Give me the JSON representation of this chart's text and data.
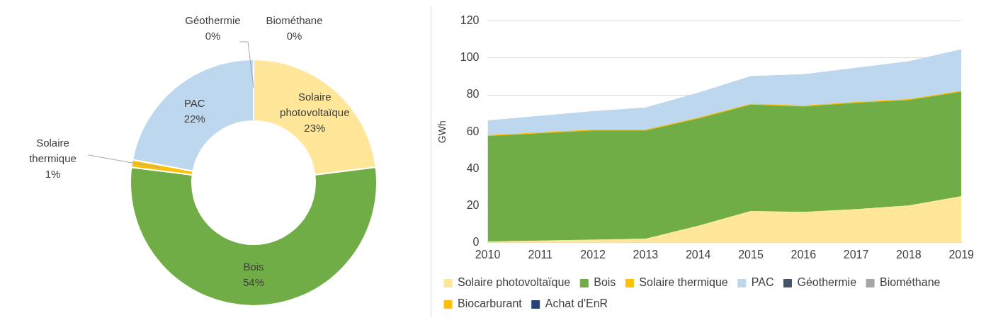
{
  "chart_data": [
    {
      "type": "donut",
      "categories": [
        "Solaire photovoltaïque",
        "Bois",
        "Solaire thermique",
        "PAC",
        "Géothermie",
        "Biométhane"
      ],
      "values": [
        23,
        54,
        1,
        22,
        0,
        0
      ],
      "value_labels": [
        "23%",
        "54%",
        "1%",
        "22%",
        "0%",
        "0%"
      ],
      "colors": [
        "#ffe699",
        "#70ad47",
        "#ffc000",
        "#bdd7ee",
        "#44546a",
        "#a5a5a5"
      ],
      "legend": false
    },
    {
      "type": "area",
      "stacked": true,
      "categories": [
        "2010",
        "2011",
        "2012",
        "2013",
        "2014",
        "2015",
        "2016",
        "2017",
        "2018",
        "2019"
      ],
      "ylabel": "GWh",
      "ylim": [
        0,
        120
      ],
      "yticks": [
        0,
        20,
        40,
        60,
        80,
        100,
        120
      ],
      "grid": "y",
      "legend": "bottom",
      "marker": "none",
      "series": [
        {
          "name": "Solaire photovoltaïque",
          "color": "#ffe699",
          "values": [
            0.5,
            1,
            1.5,
            2,
            9,
            17,
            16.5,
            18,
            20,
            25
          ]
        },
        {
          "name": "Bois",
          "color": "#70ad47",
          "values": [
            57,
            58,
            59,
            58.5,
            58,
            57.5,
            57,
            57.5,
            57,
            56.5
          ]
        },
        {
          "name": "Solaire thermique",
          "color": "#ffc000",
          "values": [
            0.5,
            0.5,
            0.5,
            0.5,
            0.5,
            0.5,
            0.5,
            0.5,
            0.5,
            0.5
          ]
        },
        {
          "name": "PAC",
          "color": "#bdd7ee",
          "values": [
            8,
            9,
            10,
            12,
            13.5,
            15,
            17,
            18.5,
            20.5,
            22.5
          ]
        },
        {
          "name": "Géothermie",
          "color": "#44546a",
          "values": [
            null,
            null,
            null,
            null,
            null,
            null,
            null,
            null,
            null,
            null
          ]
        },
        {
          "name": "Biométhane",
          "color": "#a5a5a5",
          "values": [
            null,
            null,
            null,
            null,
            null,
            null,
            null,
            null,
            null,
            null
          ]
        },
        {
          "name": "Biocarburant",
          "color": "#ffc000",
          "values": [
            null,
            null,
            null,
            null,
            null,
            null,
            null,
            null,
            null,
            null
          ]
        },
        {
          "name": "Achat d'EnR",
          "color": "#264478",
          "values": [
            null,
            null,
            null,
            null,
            null,
            null,
            null,
            null,
            null,
            null
          ]
        }
      ]
    }
  ]
}
